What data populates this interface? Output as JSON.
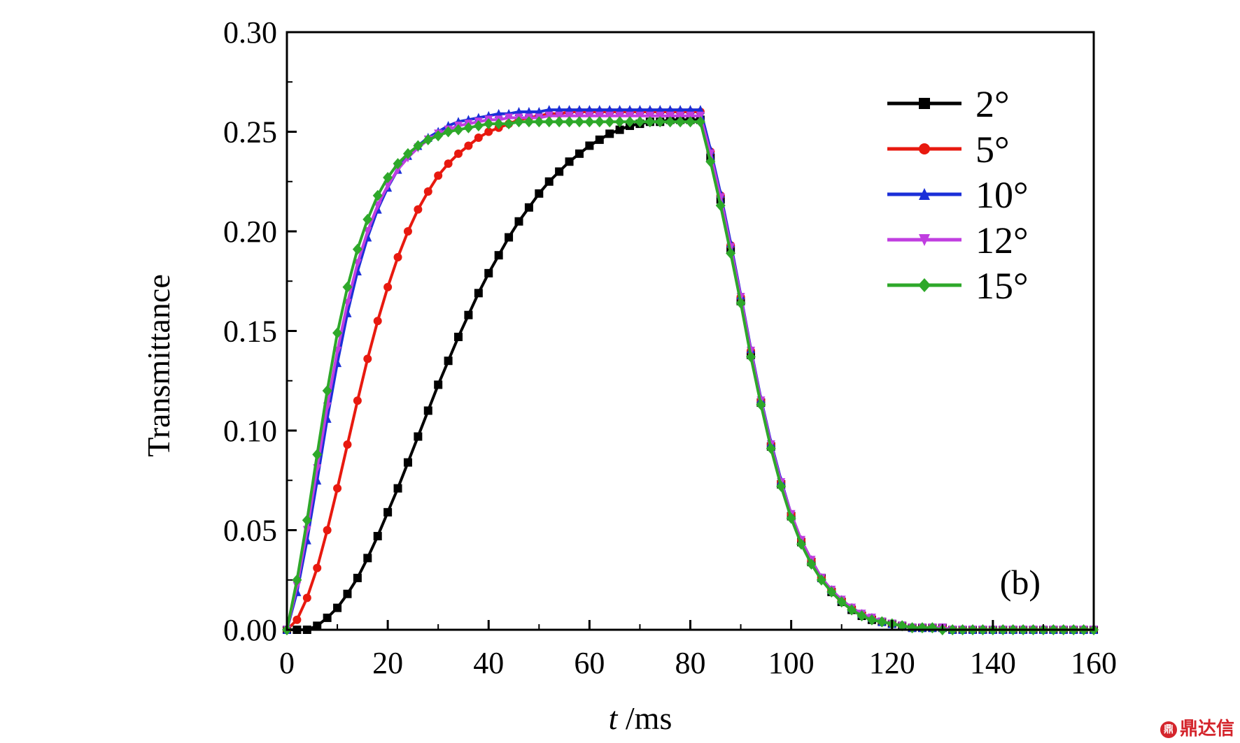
{
  "chart_data": {
    "type": "line",
    "title": "",
    "ylabel": "Transmittance",
    "xlabel_italic": "t",
    "xlabel_unit": " /ms",
    "xlim": [
      0,
      160
    ],
    "ylim": [
      0,
      0.3
    ],
    "x_ticks": [
      "0",
      "20",
      "40",
      "60",
      "80",
      "100",
      "120",
      "140",
      "160"
    ],
    "y_ticks": [
      "0.00",
      "0.05",
      "0.10",
      "0.15",
      "0.20",
      "0.25",
      "0.30"
    ],
    "grid": false,
    "legend_position": "top-right",
    "panel_label": "(b)",
    "x_step": 2,
    "series": [
      {
        "name": "2°",
        "color": "#000000",
        "marker": "square",
        "values": [
          0.0,
          0.0,
          0.0,
          0.002,
          0.006,
          0.011,
          0.018,
          0.026,
          0.036,
          0.047,
          0.059,
          0.071,
          0.084,
          0.097,
          0.11,
          0.123,
          0.135,
          0.147,
          0.158,
          0.169,
          0.179,
          0.188,
          0.197,
          0.205,
          0.212,
          0.219,
          0.225,
          0.23,
          0.235,
          0.239,
          0.243,
          0.246,
          0.249,
          0.251,
          0.253,
          0.254,
          0.255,
          0.255,
          0.256,
          0.256,
          0.256,
          0.256,
          0.237,
          0.216,
          0.191,
          0.165,
          0.138,
          0.114,
          0.092,
          0.073,
          0.057,
          0.044,
          0.034,
          0.026,
          0.019,
          0.014,
          0.01,
          0.007,
          0.005,
          0.004,
          0.003,
          0.002,
          0.001,
          0.001,
          0.001,
          0.001,
          0.0,
          0.0,
          0.0,
          0.0,
          0.0,
          0.0,
          0.0,
          0.0,
          0.0,
          0.0,
          0.0,
          0.0,
          0.0,
          0.0,
          0.0
        ]
      },
      {
        "name": "5°",
        "color": "#e8190f",
        "marker": "circle",
        "values": [
          0.0,
          0.005,
          0.016,
          0.031,
          0.05,
          0.071,
          0.093,
          0.115,
          0.136,
          0.155,
          0.172,
          0.187,
          0.2,
          0.211,
          0.22,
          0.228,
          0.234,
          0.239,
          0.243,
          0.247,
          0.25,
          0.252,
          0.254,
          0.256,
          0.257,
          0.258,
          0.259,
          0.259,
          0.26,
          0.26,
          0.26,
          0.26,
          0.26,
          0.26,
          0.26,
          0.26,
          0.26,
          0.26,
          0.26,
          0.26,
          0.26,
          0.26,
          0.24,
          0.218,
          0.193,
          0.167,
          0.14,
          0.115,
          0.093,
          0.074,
          0.058,
          0.045,
          0.035,
          0.026,
          0.02,
          0.015,
          0.011,
          0.008,
          0.006,
          0.004,
          0.003,
          0.002,
          0.001,
          0.001,
          0.001,
          0.001,
          0.0,
          0.0,
          0.0,
          0.0,
          0.0,
          0.0,
          0.0,
          0.0,
          0.0,
          0.0,
          0.0,
          0.0,
          0.0,
          0.0,
          0.0
        ]
      },
      {
        "name": "10°",
        "color": "#1b2fd8",
        "marker": "triangle-up",
        "values": [
          0.0,
          0.019,
          0.045,
          0.075,
          0.106,
          0.134,
          0.159,
          0.18,
          0.197,
          0.211,
          0.222,
          0.231,
          0.238,
          0.243,
          0.247,
          0.25,
          0.253,
          0.255,
          0.256,
          0.257,
          0.258,
          0.259,
          0.259,
          0.26,
          0.26,
          0.26,
          0.261,
          0.261,
          0.261,
          0.261,
          0.261,
          0.261,
          0.261,
          0.261,
          0.261,
          0.261,
          0.261,
          0.261,
          0.261,
          0.261,
          0.261,
          0.261,
          0.241,
          0.219,
          0.194,
          0.168,
          0.141,
          0.116,
          0.094,
          0.075,
          0.058,
          0.045,
          0.035,
          0.026,
          0.02,
          0.015,
          0.011,
          0.008,
          0.006,
          0.004,
          0.003,
          0.002,
          0.001,
          0.001,
          0.001,
          0.001,
          0.0,
          0.0,
          0.0,
          0.0,
          0.0,
          0.0,
          0.0,
          0.0,
          0.0,
          0.0,
          0.0,
          0.0,
          0.0,
          0.0,
          0.0
        ]
      },
      {
        "name": "12°",
        "color": "#c03ee0",
        "marker": "triangle-down",
        "values": [
          0.0,
          0.022,
          0.05,
          0.081,
          0.112,
          0.14,
          0.164,
          0.184,
          0.2,
          0.213,
          0.223,
          0.231,
          0.237,
          0.242,
          0.246,
          0.249,
          0.251,
          0.253,
          0.254,
          0.255,
          0.256,
          0.256,
          0.257,
          0.257,
          0.257,
          0.257,
          0.258,
          0.258,
          0.258,
          0.258,
          0.258,
          0.258,
          0.258,
          0.258,
          0.258,
          0.258,
          0.258,
          0.258,
          0.258,
          0.258,
          0.258,
          0.258,
          0.239,
          0.217,
          0.192,
          0.167,
          0.14,
          0.115,
          0.093,
          0.074,
          0.058,
          0.045,
          0.035,
          0.026,
          0.02,
          0.015,
          0.011,
          0.008,
          0.006,
          0.004,
          0.003,
          0.002,
          0.001,
          0.001,
          0.001,
          0.001,
          0.0,
          0.0,
          0.0,
          0.0,
          0.0,
          0.0,
          0.0,
          0.0,
          0.0,
          0.0,
          0.0,
          0.0,
          0.0,
          0.0,
          0.0
        ]
      },
      {
        "name": "15°",
        "color": "#2ea82a",
        "marker": "diamond",
        "values": [
          0.0,
          0.025,
          0.055,
          0.088,
          0.12,
          0.149,
          0.172,
          0.191,
          0.206,
          0.218,
          0.227,
          0.234,
          0.239,
          0.243,
          0.246,
          0.248,
          0.25,
          0.251,
          0.252,
          0.253,
          0.254,
          0.254,
          0.254,
          0.255,
          0.255,
          0.255,
          0.255,
          0.255,
          0.255,
          0.255,
          0.255,
          0.255,
          0.255,
          0.255,
          0.255,
          0.255,
          0.255,
          0.255,
          0.255,
          0.255,
          0.255,
          0.255,
          0.235,
          0.213,
          0.189,
          0.164,
          0.137,
          0.113,
          0.091,
          0.072,
          0.056,
          0.043,
          0.033,
          0.025,
          0.019,
          0.014,
          0.01,
          0.007,
          0.005,
          0.004,
          0.003,
          0.002,
          0.001,
          0.001,
          0.001,
          0.0,
          0.0,
          0.0,
          0.0,
          0.0,
          0.0,
          0.0,
          0.0,
          0.0,
          0.0,
          0.0,
          0.0,
          0.0,
          0.0,
          0.0,
          0.0
        ]
      }
    ]
  },
  "watermark": {
    "logo_glyph": "鼎",
    "text": "鼎达信"
  }
}
